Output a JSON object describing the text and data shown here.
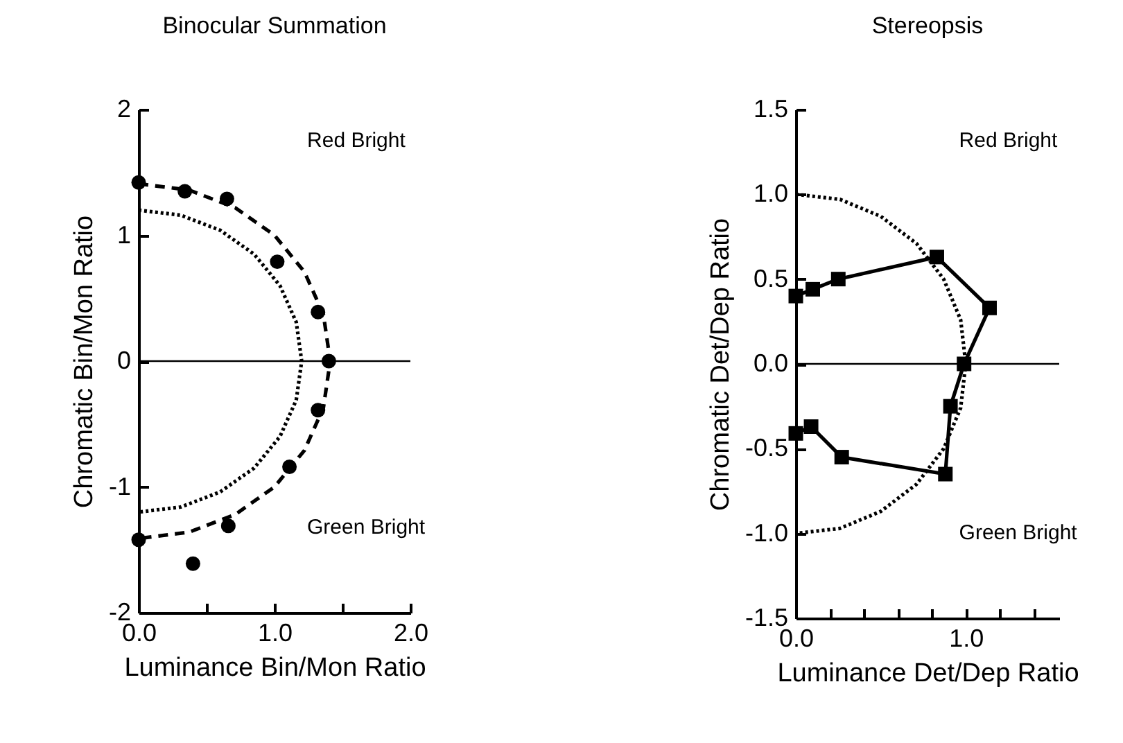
{
  "chart_data": [
    {
      "type": "scatter",
      "title": "Binocular Summation",
      "xlabel": "Luminance Bin/Mon Ratio",
      "ylabel": "Chromatic Bin/Mon Ratio",
      "xlim": [
        0,
        2
      ],
      "ylim": [
        -2,
        2
      ],
      "xticks": [
        {
          "value": 0,
          "label": "0.0"
        },
        {
          "value": 0.5,
          "label": null
        },
        {
          "value": 1,
          "label": "1.0"
        },
        {
          "value": 1.5,
          "label": null
        },
        {
          "value": 2,
          "label": "2.0"
        }
      ],
      "yticks": [
        -2,
        -1,
        0,
        1,
        2
      ],
      "grid": false,
      "series": [
        {
          "type": "line",
          "color": "#000000",
          "line_style": "dotted",
          "marker": "none",
          "x": [
            0,
            0.31,
            0.6,
            0.85,
            1.04,
            1.16,
            1.2,
            1.16,
            1.04,
            0.85,
            0.6,
            0.31,
            0
          ],
          "values": [
            1.2,
            1.16,
            1.04,
            0.85,
            0.6,
            0.31,
            0,
            -0.31,
            -0.6,
            -0.85,
            -1.04,
            -1.16,
            -1.2
          ]
        },
        {
          "type": "line",
          "color": "#000000",
          "line_style": "dashed",
          "marker": "none",
          "x": [
            0,
            0.37,
            0.71,
            1.0,
            1.22,
            1.36,
            1.41,
            1.36,
            1.22,
            1.0,
            0.71,
            0.37,
            0
          ],
          "values": [
            1.41,
            1.36,
            1.22,
            1.0,
            0.71,
            0.37,
            0,
            -0.37,
            -0.71,
            -1.0,
            -1.22,
            -1.36,
            -1.41
          ]
        },
        {
          "color": "#000000",
          "marker": "circle",
          "x": [
            0,
            0.34,
            0.65,
            1.02,
            1.32,
            1.4,
            1.32,
            1.11,
            0.66,
            0,
            0.4
          ],
          "values": [
            1.42,
            1.35,
            1.29,
            0.79,
            0.39,
            0,
            -0.39,
            -0.84,
            -1.31,
            -1.42,
            -1.61
          ]
        }
      ],
      "ref_lines": [
        {
          "axis": "y",
          "value": 0,
          "color": "#000000",
          "line_style": "solid"
        }
      ],
      "annotations": [
        "Red Bright",
        "Green Bright"
      ]
    },
    {
      "type": "line",
      "title": "Stereopsis",
      "xlabel": "Luminance Det/Dep Ratio",
      "ylabel": "Chromatic Det/Dep Ratio",
      "xlim": [
        0,
        1.55
      ],
      "ylim": [
        -1.5,
        1.5
      ],
      "xticks": [
        {
          "value": 0,
          "label": "0.0"
        },
        {
          "value": 0.2,
          "label": null
        },
        {
          "value": 0.4,
          "label": null
        },
        {
          "value": 0.6,
          "label": null
        },
        {
          "value": 0.8,
          "label": null
        },
        {
          "value": 1,
          "label": "1.0"
        },
        {
          "value": 1.2,
          "label": null
        },
        {
          "value": 1.4,
          "label": null
        }
      ],
      "yticks": [
        {
          "value": -1.5,
          "label": "-1.5"
        },
        {
          "value": -1,
          "label": "-1.0"
        },
        {
          "value": -0.5,
          "label": "-0.5"
        },
        {
          "value": 0,
          "label": "0.0"
        },
        {
          "value": 0.5,
          "label": "0.5"
        },
        {
          "value": 1,
          "label": "1.0"
        },
        {
          "value": 1.5,
          "label": "1.5"
        }
      ],
      "grid": false,
      "series": [
        {
          "type": "line",
          "color": "#000000",
          "line_style": "dotted",
          "marker": "none",
          "x": [
            0,
            0.26,
            0.5,
            0.71,
            0.87,
            0.97,
            1.0,
            0.97,
            0.87,
            0.71,
            0.5,
            0.26,
            0
          ],
          "values": [
            1.0,
            0.97,
            0.87,
            0.71,
            0.5,
            0.26,
            0,
            -0.26,
            -0.5,
            -0.71,
            -0.87,
            -0.97,
            -1.0
          ]
        },
        {
          "color": "#000000",
          "line_style": "solid",
          "marker": "square",
          "x": [
            0,
            0.1,
            0.25,
            0.83,
            1.14,
            0.99,
            0.91,
            0.88,
            0.27,
            0.09,
            0
          ],
          "values": [
            0.4,
            0.44,
            0.5,
            0.63,
            0.33,
            0,
            -0.25,
            -0.65,
            -0.55,
            -0.37,
            -0.41
          ]
        }
      ],
      "ref_lines": [
        {
          "axis": "y",
          "value": 0,
          "color": "#000000",
          "line_style": "solid"
        }
      ],
      "annotations": [
        "Red Bright",
        "Green Bright"
      ]
    }
  ]
}
